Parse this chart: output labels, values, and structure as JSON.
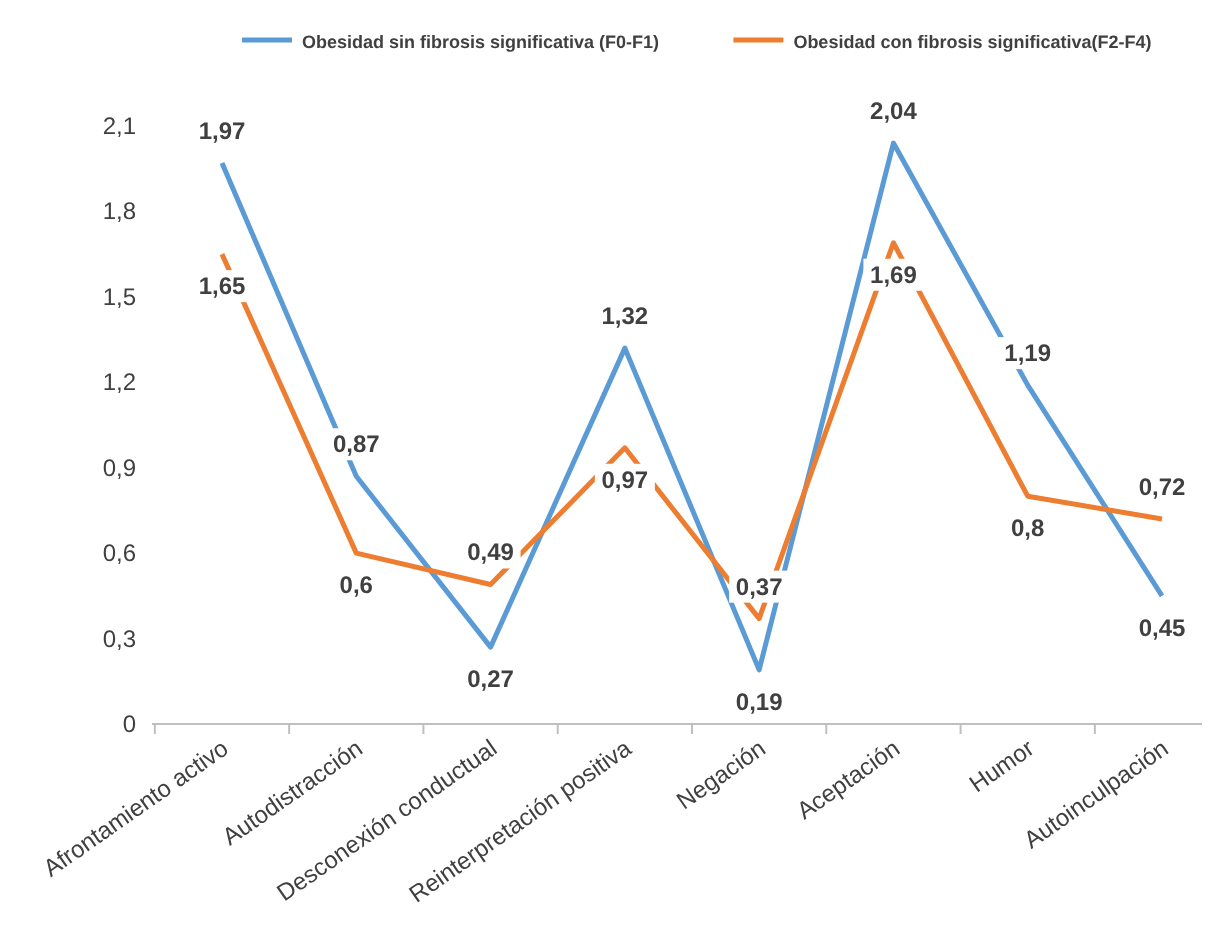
{
  "chart_data": {
    "type": "line",
    "categories": [
      "Afrontamiento activo",
      "Autodistracción",
      "Desconexión conductual",
      "Reinterpretación positiva",
      "Negación",
      "Aceptación",
      "Humor",
      "Autoinculpación"
    ],
    "series": [
      {
        "name": "Obesidad sin fibrosis significativa (F0-F1)",
        "color": "#5b9bd5",
        "values": [
          1.97,
          0.87,
          0.27,
          1.32,
          0.19,
          2.04,
          1.19,
          0.45
        ],
        "value_labels": [
          "1,97",
          "0,87",
          "0,27",
          "1,32",
          "0,19",
          "2,04",
          "1,19",
          "0,45"
        ]
      },
      {
        "name": "Obesidad con fibrosis significativa(F2-F4)",
        "color": "#ed7d31",
        "values": [
          1.65,
          0.6,
          0.49,
          0.97,
          0.37,
          1.69,
          0.8,
          0.72
        ],
        "value_labels": [
          "1,65",
          "0,6",
          "0,49",
          "0,97",
          "0,37",
          "1,69",
          "0,8",
          "0,72"
        ]
      }
    ],
    "ylim": [
      0,
      2.1
    ],
    "yticks": [
      0,
      {
        "value": 0.3,
        "label": "0,3"
      },
      {
        "value": 0.6,
        "label": "0,6"
      },
      {
        "value": 0.9,
        "label": "0,9"
      },
      {
        "value": 1.2,
        "label": "1,2"
      },
      {
        "value": 1.5,
        "label": "1,5"
      },
      {
        "value": 1.8,
        "label": "1,8"
      },
      {
        "value": 2.1,
        "label": "2,1"
      }
    ],
    "grid": false,
    "legend": "top",
    "marker": "none",
    "line_style": "solid"
  }
}
